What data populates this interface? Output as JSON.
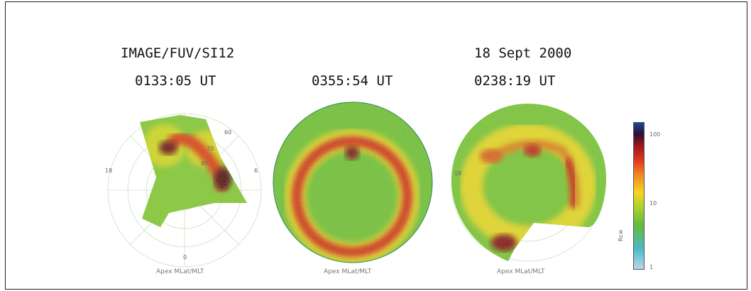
{
  "header": {
    "instrument": "IMAGE/FUV/SI12",
    "date": "18 Sept 2000",
    "times": [
      "0133:05 UT",
      "0355:54 UT",
      "0238:19 UT"
    ]
  },
  "axis_label": "Apex MLat/MLT",
  "polar_labels": {
    "lat_60": "60",
    "lat_70": "70",
    "lat_80": "80",
    "mlt_18": "18",
    "mlt_6": "6",
    "mlt_0": "0"
  },
  "colorbar": {
    "label": "Rcw",
    "ticks": [
      "100",
      "10",
      "1"
    ],
    "scale": "log",
    "colors": [
      "#9fd5e6",
      "#3fb8c4",
      "#6dbe3a",
      "#c8d82a",
      "#f6d51e",
      "#f28a22",
      "#e03a1e",
      "#a0161c",
      "#2a1030",
      "#1a3f8a"
    ]
  },
  "colors": {
    "background_green": "#6fb83a",
    "aurora_red": "#d4231c",
    "aurora_dark": "#5a0c18",
    "grid": "#cfe6c6"
  }
}
